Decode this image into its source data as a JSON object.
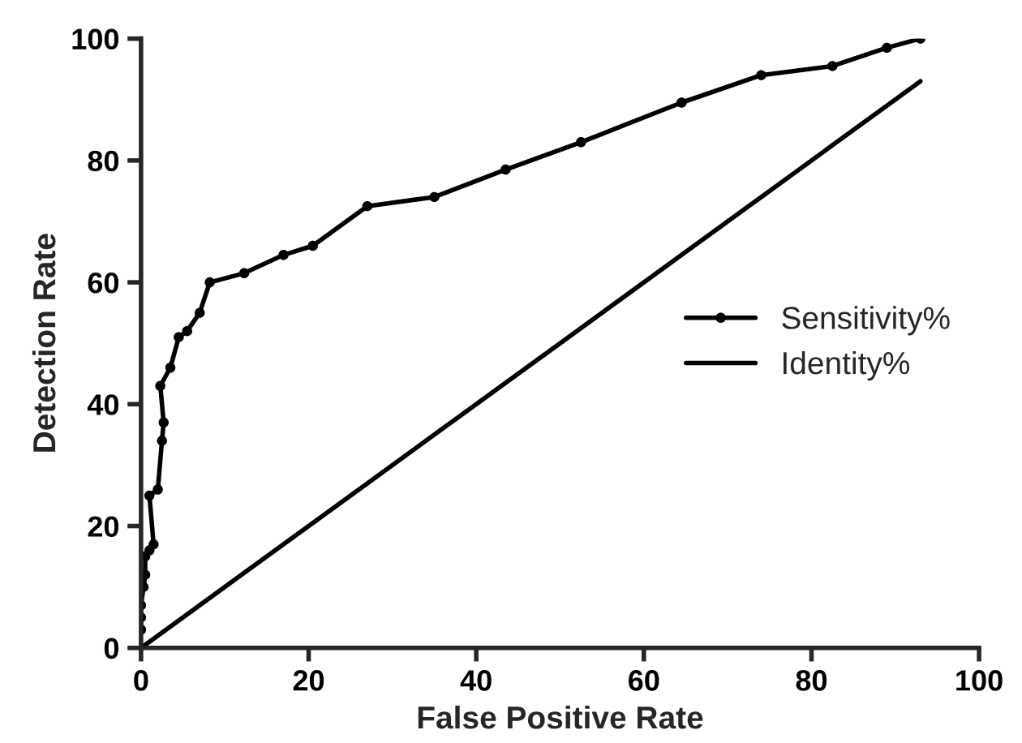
{
  "chart_data": {
    "type": "line",
    "xlabel": "False Positive Rate",
    "ylabel": "Detection Rate",
    "xlim": [
      0,
      100
    ],
    "ylim": [
      0,
      100
    ],
    "xticks": [
      0,
      20,
      40,
      60,
      80,
      100
    ],
    "yticks": [
      0,
      20,
      40,
      60,
      80,
      100
    ],
    "grid": false,
    "legend": "right",
    "series": [
      {
        "name": "Sensitivity%",
        "color": "#000000",
        "marker": "circle",
        "x": [
          0,
          0,
          0,
          0.3,
          0.5,
          0.5,
          1,
          1.5,
          1,
          2,
          2.5,
          2.7,
          2.3,
          3.5,
          4.5,
          5.5,
          7,
          8.2,
          12.3,
          17,
          20.5,
          27,
          35,
          43.5,
          52.5,
          64.5,
          74,
          82.5,
          89,
          93
        ],
        "values": [
          3,
          5,
          7,
          10,
          12,
          15,
          16,
          17,
          25,
          26,
          34,
          37,
          43,
          46,
          51,
          52,
          55,
          60,
          61.5,
          64.5,
          66,
          72.5,
          74,
          78.5,
          83,
          89.5,
          94,
          95.5,
          98.5,
          100
        ]
      },
      {
        "name": "Identity%",
        "color": "#000000",
        "marker": "none",
        "x": [
          0,
          5,
          12,
          20,
          27,
          35,
          43,
          52.5,
          64.5,
          74,
          82.5,
          89,
          93
        ],
        "values": [
          0,
          5,
          12,
          20,
          27,
          35,
          43,
          52.5,
          64.5,
          74,
          82.5,
          89,
          93
        ]
      }
    ]
  }
}
